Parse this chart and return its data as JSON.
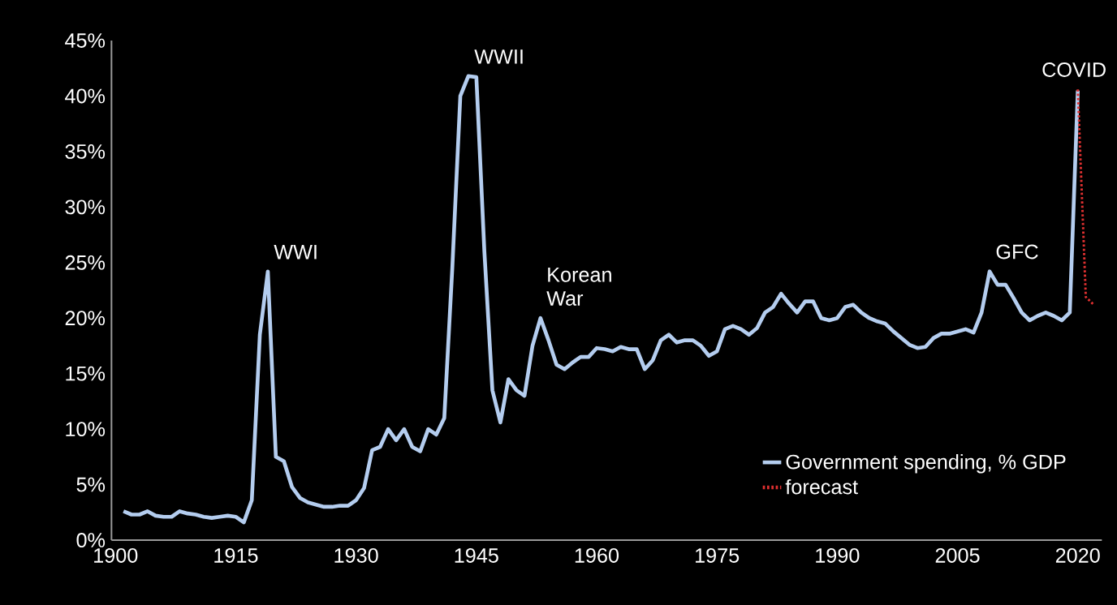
{
  "chart_data": {
    "type": "line",
    "x": [
      1901,
      1902,
      1903,
      1904,
      1905,
      1906,
      1907,
      1908,
      1909,
      1910,
      1911,
      1912,
      1913,
      1914,
      1915,
      1916,
      1917,
      1918,
      1919,
      1920,
      1921,
      1922,
      1923,
      1924,
      1925,
      1926,
      1927,
      1928,
      1929,
      1930,
      1931,
      1932,
      1933,
      1934,
      1935,
      1936,
      1937,
      1938,
      1939,
      1940,
      1941,
      1942,
      1943,
      1944,
      1945,
      1946,
      1947,
      1948,
      1949,
      1950,
      1951,
      1952,
      1953,
      1954,
      1955,
      1956,
      1957,
      1958,
      1959,
      1960,
      1961,
      1962,
      1963,
      1964,
      1965,
      1966,
      1967,
      1968,
      1969,
      1970,
      1971,
      1972,
      1973,
      1974,
      1975,
      1976,
      1977,
      1978,
      1979,
      1980,
      1981,
      1982,
      1983,
      1984,
      1985,
      1986,
      1987,
      1988,
      1989,
      1990,
      1991,
      1992,
      1993,
      1994,
      1995,
      1996,
      1997,
      1998,
      1999,
      2000,
      2001,
      2002,
      2003,
      2004,
      2005,
      2006,
      2007,
      2008,
      2009,
      2010,
      2011,
      2012,
      2013,
      2014,
      2015,
      2016,
      2017,
      2018,
      2019,
      2020
    ],
    "series": [
      {
        "name": "Government spending, % GDP",
        "color": "#b4cdef",
        "line_style": "solid",
        "values": [
          2.6,
          2.3,
          2.3,
          2.6,
          2.2,
          2.1,
          2.1,
          2.6,
          2.4,
          2.3,
          2.1,
          2.0,
          2.1,
          2.2,
          2.1,
          1.6,
          3.6,
          18.5,
          24.2,
          7.5,
          7.1,
          4.8,
          3.8,
          3.4,
          3.2,
          3.0,
          3.0,
          3.1,
          3.1,
          3.6,
          4.7,
          8.1,
          8.4,
          10.0,
          9.0,
          10.0,
          8.4,
          8.0,
          10.0,
          9.5,
          11.0,
          24.5,
          40.0,
          41.8,
          41.7,
          26.0,
          13.5,
          10.6,
          14.5,
          13.5,
          13.0,
          17.5,
          20.0,
          18.0,
          15.8,
          15.4,
          16.0,
          16.5,
          16.5,
          17.3,
          17.2,
          17.0,
          17.4,
          17.2,
          17.2,
          15.4,
          16.2,
          18.0,
          18.5,
          17.8,
          18.0,
          18.0,
          17.5,
          16.6,
          17.0,
          19.0,
          19.3,
          19.0,
          18.5,
          19.1,
          20.5,
          21.0,
          22.2,
          21.3,
          20.5,
          21.5,
          21.5,
          20.0,
          19.8,
          20.0,
          21.0,
          21.2,
          20.5,
          20.0,
          19.7,
          19.5,
          18.8,
          18.2,
          17.6,
          17.3,
          17.4,
          18.2,
          18.6,
          18.6,
          18.8,
          19.0,
          18.7,
          20.5,
          24.2,
          23.0,
          23.0,
          21.8,
          20.5,
          19.8,
          20.2,
          20.5,
          20.2,
          19.8,
          20.5,
          40.5
        ]
      },
      {
        "name": "forecast",
        "color": "#e03030",
        "line_style": "dotted",
        "x": [
          2020,
          2021,
          2022
        ],
        "values": [
          40.6,
          21.9,
          21.2
        ]
      }
    ],
    "xlim": [
      1899.5,
      2023
    ],
    "ylim": [
      0,
      45
    ],
    "xticks": [
      1900,
      1915,
      1930,
      1945,
      1960,
      1975,
      1990,
      2005,
      2020
    ],
    "yticks": [
      {
        "value": 0,
        "label": "0%"
      },
      {
        "value": 5,
        "label": "5%"
      },
      {
        "value": 10,
        "label": "10%"
      },
      {
        "value": 15,
        "label": "15%"
      },
      {
        "value": 20,
        "label": "20%"
      },
      {
        "value": 25,
        "label": "25%"
      },
      {
        "value": 30,
        "label": "30%"
      },
      {
        "value": 35,
        "label": "35%"
      },
      {
        "value": 40,
        "label": "40%"
      },
      {
        "value": 45,
        "label": "45%"
      }
    ],
    "annotations": [
      {
        "text": "WWI",
        "x": 1919,
        "y": 24.2
      },
      {
        "text": "WWII",
        "x": 1944,
        "y": 41.8
      },
      {
        "text": "Korean War",
        "x": 1953,
        "y": 20.0
      },
      {
        "text": "GFC",
        "x": 2009,
        "y": 24.2
      },
      {
        "text": "COVID",
        "x": 2020,
        "y": 40.6
      }
    ],
    "legend": "bottom right",
    "grid": false
  }
}
